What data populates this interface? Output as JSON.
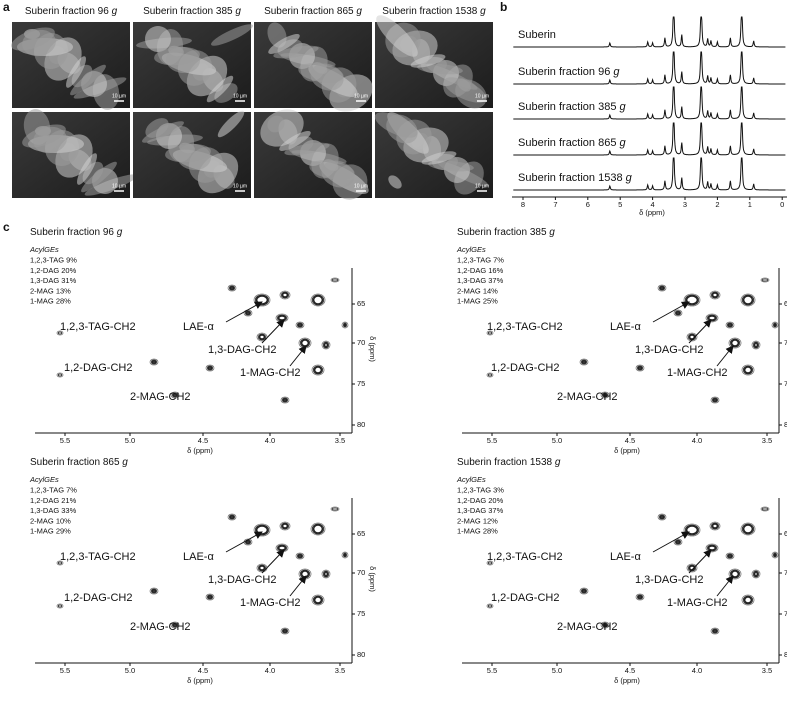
{
  "panels": {
    "a": {
      "letter": "a",
      "scale_bar": "10 µm",
      "columns": [
        {
          "name": "Suberin fraction 96",
          "unit": "g"
        },
        {
          "name": "Suberin fraction 385",
          "unit": "g"
        },
        {
          "name": "Suberin fraction 865",
          "unit": "g"
        },
        {
          "name": "Suberin fraction 1538",
          "unit": "g"
        }
      ]
    },
    "b": {
      "letter": "b",
      "xlabel": "δ (ppm)",
      "xticks": [
        "8",
        "7",
        "6",
        "5",
        "4",
        "3",
        "2",
        "1",
        "0"
      ],
      "spectra": [
        {
          "name": "Suberin"
        },
        {
          "name": "Suberin fraction 96",
          "unit": "g"
        },
        {
          "name": "Suberin fraction 385",
          "unit": "g"
        },
        {
          "name": "Suberin fraction 865",
          "unit": "g"
        },
        {
          "name": "Suberin fraction 1538",
          "unit": "g"
        }
      ]
    },
    "c": {
      "letter": "c",
      "xlabel": "δ (ppm)",
      "ylabel": "δ (ppm)",
      "xticks": [
        "5.5",
        "5.0",
        "4.5",
        "4.0",
        "3.5"
      ],
      "yticks": [
        "65",
        "70",
        "75",
        "80"
      ],
      "labels": {
        "lae": "LAE-α",
        "tag": "1,2,3-TAG-CH2",
        "dag12": "1,2-DAG-CH2",
        "dag13": "1,3-DAG-CH2",
        "mag1": "1-MAG-CH2",
        "mag2": "2-MAG-CH2"
      },
      "plots": [
        {
          "title": {
            "name": "Suberin fraction 96",
            "unit": "g"
          },
          "acyl_title": "AcylGEs",
          "composition": [
            "1,2,3-TAG 9%",
            "1,2-DAG 20%",
            "1,3-DAG 31%",
            "2-MAG 13%",
            "1-MAG 28%"
          ]
        },
        {
          "title": {
            "name": "Suberin fraction 385",
            "unit": "g"
          },
          "acyl_title": "AcylGEs",
          "composition": [
            "1,2,3-TAG 7%",
            "1,2-DAG 16%",
            "1,3-DAG 37%",
            "2-MAG 14%",
            "1-MAG 25%"
          ]
        },
        {
          "title": {
            "name": "Suberin fraction 865",
            "unit": "g"
          },
          "acyl_title": "AcylGEs",
          "composition": [
            "1,2,3-TAG 7%",
            "1,2-DAG 21%",
            "1,3-DAG 33%",
            "2-MAG 10%",
            "1-MAG 29%"
          ]
        },
        {
          "title": {
            "name": "Suberin fraction 1538",
            "unit": "g"
          },
          "acyl_title": "AcylGEs",
          "composition": [
            "1,2,3-TAG 3%",
            "1,2-DAG 20%",
            "1,3-DAG 37%",
            "2-MAG 12%",
            "1-MAG 28%"
          ]
        }
      ]
    }
  }
}
